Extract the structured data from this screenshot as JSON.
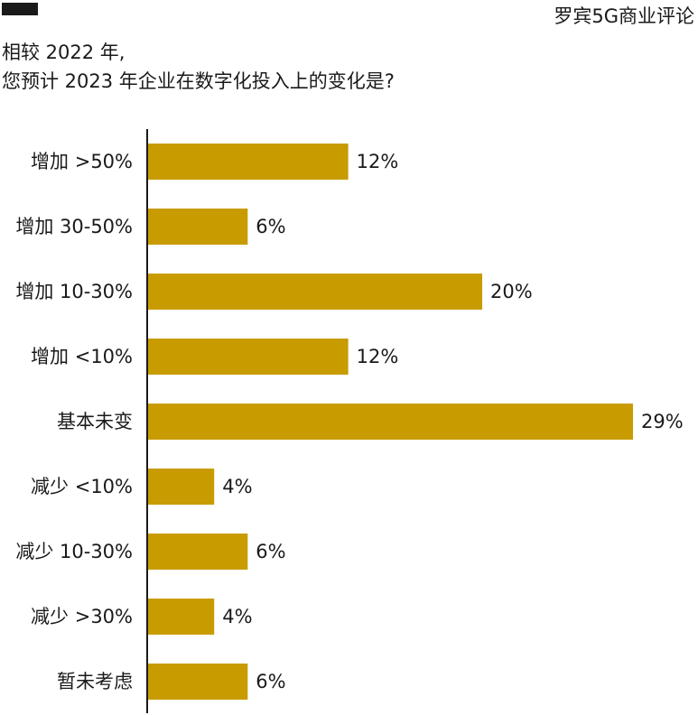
{
  "header": {
    "brand": "罗宾5G商业评论"
  },
  "colors": {
    "bar": "#C89B00",
    "axis": "#1a1a1a",
    "logo": "#1a1a1a"
  },
  "chart_data": {
    "type": "bar",
    "orientation": "horizontal",
    "title_lines": [
      "相较 2022 年,",
      "您预计 2023 年企业在数字化投入上的变化是?"
    ],
    "categories": [
      "增加 >50%",
      "增加 30-50%",
      "增加 10-30%",
      "增加 <10%",
      "基本未变",
      "减少 <10%",
      "减少 10-30%",
      "减少 >30%",
      "暂未考虑"
    ],
    "values": [
      12,
      6,
      20,
      12,
      29,
      4,
      6,
      4,
      6
    ],
    "value_labels": [
      "12%",
      "6%",
      "20%",
      "12%",
      "29%",
      "4%",
      "6%",
      "4%",
      "6%"
    ],
    "xlim": [
      0,
      29
    ],
    "grid": false,
    "legend": "none"
  }
}
